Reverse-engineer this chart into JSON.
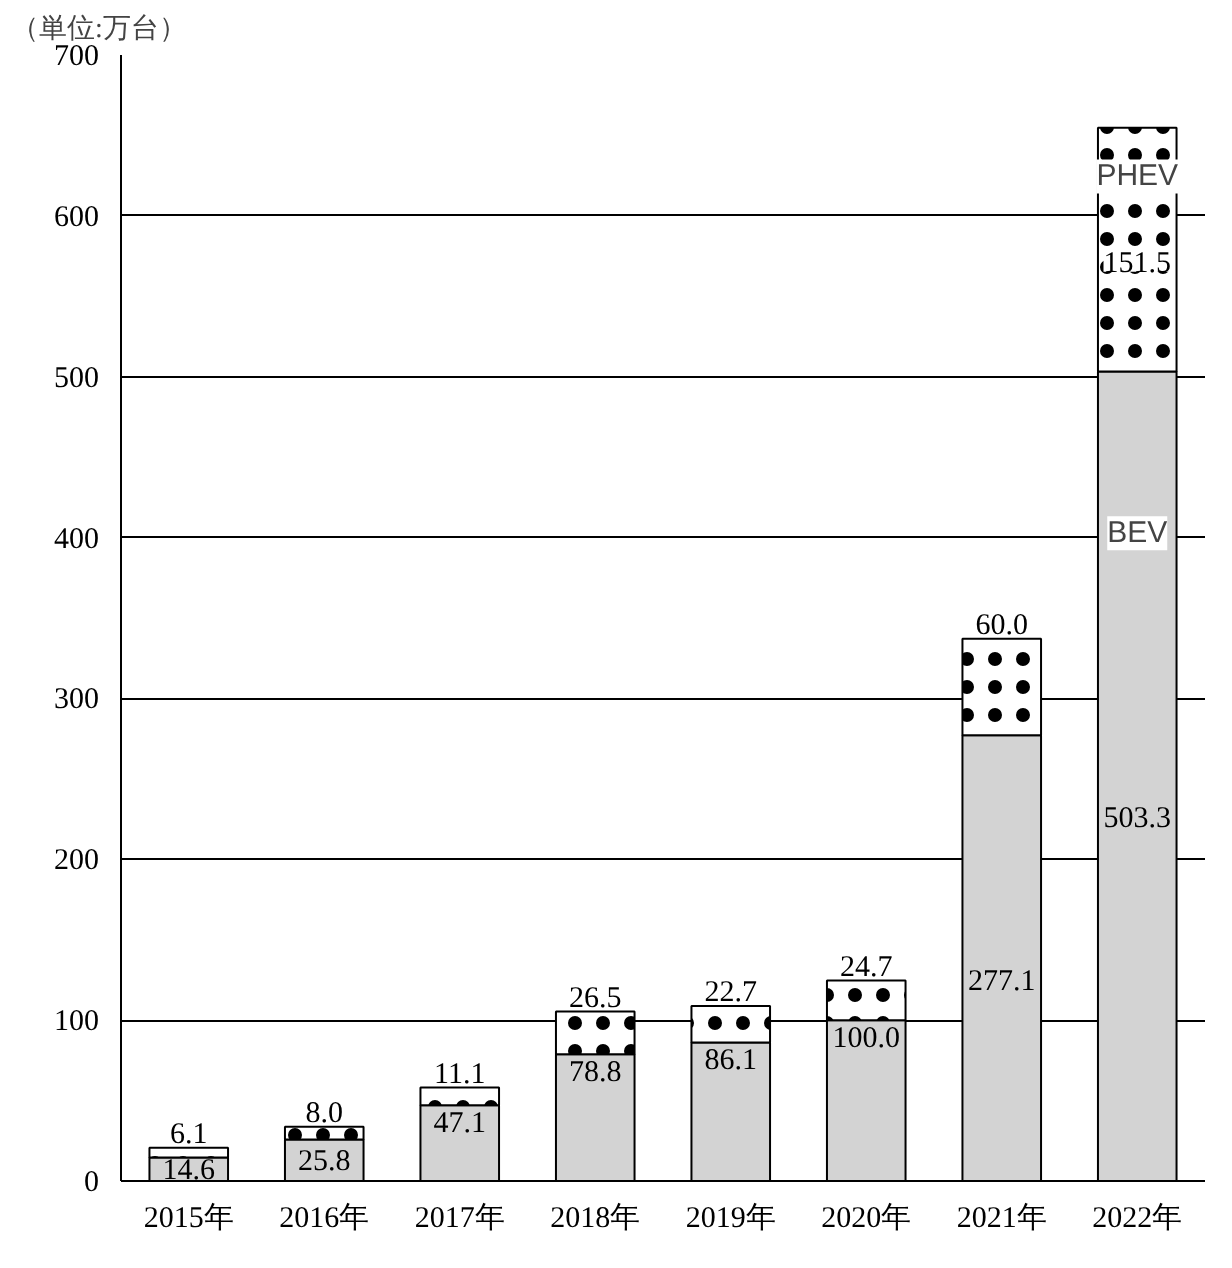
{
  "chart_data": {
    "type": "bar",
    "stacked": true,
    "ylabel": "（単位:万台）",
    "categories": [
      "2015年",
      "2016年",
      "2017年",
      "2018年",
      "2019年",
      "2020年",
      "2021年",
      "2022年"
    ],
    "series": [
      {
        "name": "BEV",
        "color": "#d3d3d3",
        "values": [
          14.6,
          25.8,
          47.1,
          78.8,
          86.1,
          100.0,
          277.1,
          503.3
        ],
        "value_labels": [
          "14.6",
          "25.8",
          "47.1",
          "78.8",
          "86.1",
          "100.0",
          "277.1",
          "503.3"
        ]
      },
      {
        "name": "PHEV",
        "color": "#ffffff",
        "values": [
          6.1,
          8.0,
          11.1,
          26.5,
          22.7,
          24.7,
          60.0,
          151.5
        ],
        "value_labels": [
          "6.1",
          "8.0",
          "11.1",
          "26.5",
          "22.7",
          "24.7",
          "60.0",
          "151.5"
        ]
      }
    ],
    "ylim": [
      0,
      700
    ],
    "yticks": [
      0,
      100,
      200,
      300,
      400,
      500,
      600,
      700
    ],
    "grid": "y",
    "legend": false
  }
}
